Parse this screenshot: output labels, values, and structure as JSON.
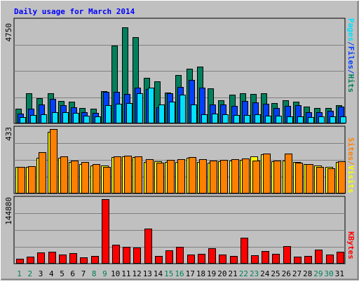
{
  "colors": {
    "background": "#C0C0C0",
    "frame_light": "#FFFFFF",
    "frame_dark": "#808080",
    "title": "#0000FF",
    "gridline": "#808080",
    "hits": "#00805C",
    "files": "#0040FF",
    "pages": "#00E0FF",
    "visits": "#FFFF00",
    "sites": "#FF8000",
    "kbytes": "#FF0000",
    "day_weekday": "#000000",
    "day_weekend": "#00805C",
    "bar_outline": "#000000"
  },
  "chart_data": {
    "type": "bar",
    "title": "Daily usage for March 2014",
    "categories": [
      "1",
      "2",
      "3",
      "4",
      "5",
      "6",
      "7",
      "8",
      "9",
      "10",
      "11",
      "12",
      "13",
      "14",
      "15",
      "16",
      "17",
      "18",
      "19",
      "20",
      "21",
      "22",
      "23",
      "24",
      "25",
      "26",
      "27",
      "28",
      "29",
      "30",
      "31"
    ],
    "weekend_days": [
      "1",
      "2",
      "8",
      "9",
      "15",
      "16",
      "22",
      "23",
      "29",
      "30"
    ],
    "panels": [
      {
        "name": "hits",
        "ymax_label": "4750",
        "ylim": [
          0,
          4750
        ],
        "grid": true,
        "legend": [
          "Pages",
          "/",
          "Files",
          "/",
          "Hits"
        ],
        "series": [
          {
            "name": "Hits",
            "values": [
              690,
              1410,
              1180,
              1390,
              1050,
              1020,
              700,
              690,
              1490,
              3620,
              4460,
              3990,
              2130,
              1950,
              1440,
              2250,
              2530,
              2650,
              1620,
              1060,
              1350,
              1410,
              1360,
              1390,
              940,
              1070,
              1020,
              770,
              720,
              730,
              840
            ]
          },
          {
            "name": "Files",
            "values": [
              450,
              670,
              870,
              1140,
              830,
              750,
              520,
              500,
              1450,
              1450,
              1380,
              1670,
              1590,
              750,
              1390,
              1700,
              2030,
              1660,
              870,
              870,
              800,
              1040,
              980,
              920,
              720,
              810,
              850,
              520,
              510,
              570,
              780
            ]
          },
          {
            "name": "Pages",
            "values": [
              290,
              390,
              420,
              520,
              520,
              490,
              370,
              330,
              840,
              900,
              950,
              1400,
              1660,
              890,
              1010,
              1340,
              870,
              410,
              460,
              410,
              390,
              380,
              420,
              370,
              370,
              330,
              320,
              300,
              320,
              320,
              340
            ]
          }
        ]
      },
      {
        "name": "visits",
        "ymax_label": "433",
        "ylim": [
          0,
          433
        ],
        "grid": true,
        "legend": [
          "Sites",
          "/",
          "Visits"
        ],
        "series": [
          {
            "name": "Visits",
            "values": [
              178,
              179,
              241,
              414,
              242,
              211,
              200,
              186,
              186,
              245,
              250,
              245,
              210,
              215,
              213,
              211,
              240,
              210,
              209,
              215,
              220,
              225,
              248,
              262,
              218,
              222,
              210,
              200,
              190,
              180,
              210
            ]
          },
          {
            "name": "Sites",
            "values": [
              180,
              184,
              280,
              433,
              250,
              220,
              210,
              200,
              180,
              250,
              252,
              248,
              230,
              205,
              225,
              230,
              245,
              230,
              220,
              225,
              230,
              235,
              220,
              270,
              220,
              270,
              205,
              200,
              180,
              170,
              215
            ]
          }
        ]
      },
      {
        "name": "kbytes",
        "ymax_label": "144880",
        "ylim": [
          0,
          144880
        ],
        "grid": true,
        "legend": [
          "KBytes"
        ],
        "series": [
          {
            "name": "KBytes",
            "values": [
              11000,
              16000,
              25000,
              26000,
              20000,
              24000,
              14000,
              17000,
              144880,
              43000,
              38000,
              36000,
              78000,
              17000,
              30000,
              38000,
              20000,
              22000,
              34000,
              20000,
              17000,
              58000,
              19000,
              28000,
              22000,
              39000,
              15000,
              17000,
              32000,
              20000,
              26000
            ]
          }
        ]
      }
    ]
  }
}
